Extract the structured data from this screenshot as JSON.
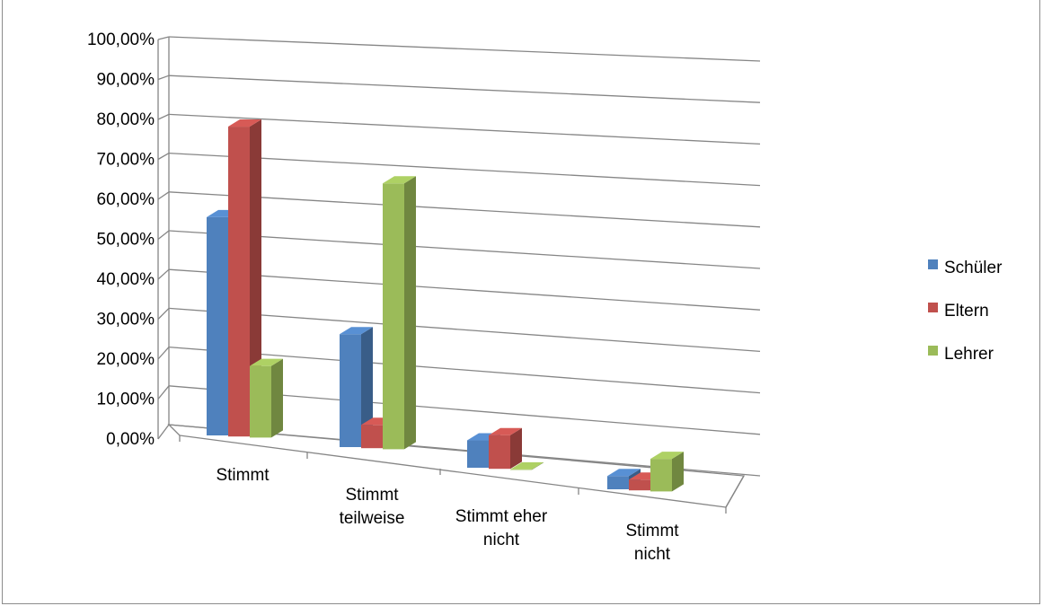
{
  "title": "",
  "chart_data": {
    "type": "bar",
    "categories": [
      [
        "Stimmt"
      ],
      [
        "Stimmt",
        "teilweise"
      ],
      [
        "Stimmt eher",
        "nicht"
      ],
      [
        "Stimmt",
        "nicht"
      ]
    ],
    "series": [
      {
        "name": "Schüler",
        "color": "#4f81bd",
        "values": [
          55.5,
          29.6,
          7.4,
          3.7
        ]
      },
      {
        "name": "Eltern",
        "color": "#c0504d",
        "values": [
          78.8,
          6.1,
          9.1,
          3.0
        ]
      },
      {
        "name": "Lehrer",
        "color": "#9bbb59",
        "values": [
          18.2,
          69.7,
          0.0,
          9.1
        ]
      }
    ],
    "ytick_labels": [
      "0,00%",
      "10,00%",
      "20,00%",
      "30,00%",
      "40,00%",
      "50,00%",
      "60,00%",
      "70,00%",
      "80,00%",
      "90,00%",
      "100,00%"
    ],
    "ylim": [
      0,
      100
    ],
    "legend_position": "right",
    "grid": true
  }
}
